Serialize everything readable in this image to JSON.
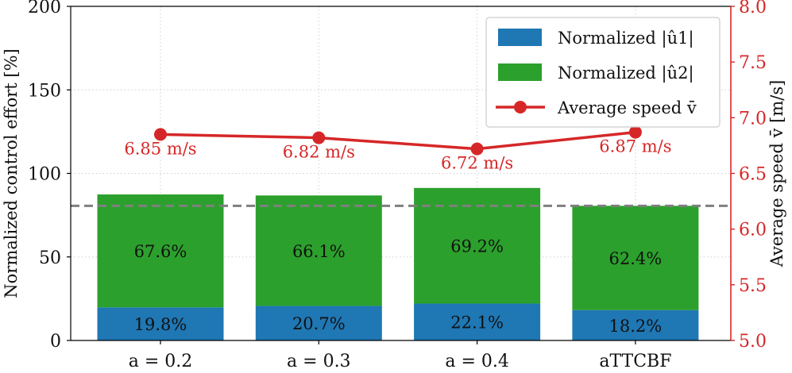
{
  "chart_data": {
    "type": "bar",
    "stacked": true,
    "categories": [
      "a = 0.2",
      "a = 0.3",
      "a = 0.4",
      "aTTCBF"
    ],
    "series": [
      {
        "name": "Normalized |û1|",
        "color": "#1f77b4",
        "values": [
          19.8,
          20.7,
          22.1,
          18.2
        ],
        "labels": [
          "19.8%",
          "20.7%",
          "22.1%",
          "18.2%"
        ]
      },
      {
        "name": "Normalized |û2|",
        "color": "#2ca02c",
        "values": [
          67.6,
          66.1,
          69.2,
          62.4
        ],
        "labels": [
          "67.6%",
          "66.1%",
          "69.2%",
          "62.4%"
        ]
      }
    ],
    "line_series": {
      "name": "Average speed v̄",
      "color": "#d62728",
      "values": [
        6.85,
        6.82,
        6.72,
        6.87
      ],
      "labels": [
        "6.85 m/s",
        "6.82 m/s",
        "6.72 m/s",
        "6.87 m/s"
      ]
    },
    "reference_line": {
      "value": 80.6,
      "style": "dashed",
      "color": "#7f7f7f"
    },
    "ylabel": "Normalized control effort [%]",
    "ylim": [
      0,
      200
    ],
    "yticks": [
      0,
      50,
      100,
      150,
      200
    ],
    "ytick_labels": [
      "0",
      "50",
      "100",
      "150",
      "200"
    ],
    "y2label": "Average speed v̄ [m/s]",
    "y2lim": [
      5.0,
      8.0
    ],
    "y2ticks": [
      5.0,
      5.5,
      6.0,
      6.5,
      7.0,
      7.5,
      8.0
    ],
    "y2tick_labels": [
      "5.0",
      "5.5",
      "6.0",
      "6.5",
      "7.0",
      "7.5",
      "8.0"
    ],
    "legend": {
      "position": "top-right",
      "entries": [
        {
          "label": "Normalized |û1|",
          "color": "#1f77b4",
          "kind": "patch"
        },
        {
          "label": "Normalized |û2|",
          "color": "#2ca02c",
          "kind": "patch"
        },
        {
          "label": "Average speed v̄",
          "color": "#d62728",
          "kind": "line"
        }
      ]
    },
    "grid": true
  }
}
